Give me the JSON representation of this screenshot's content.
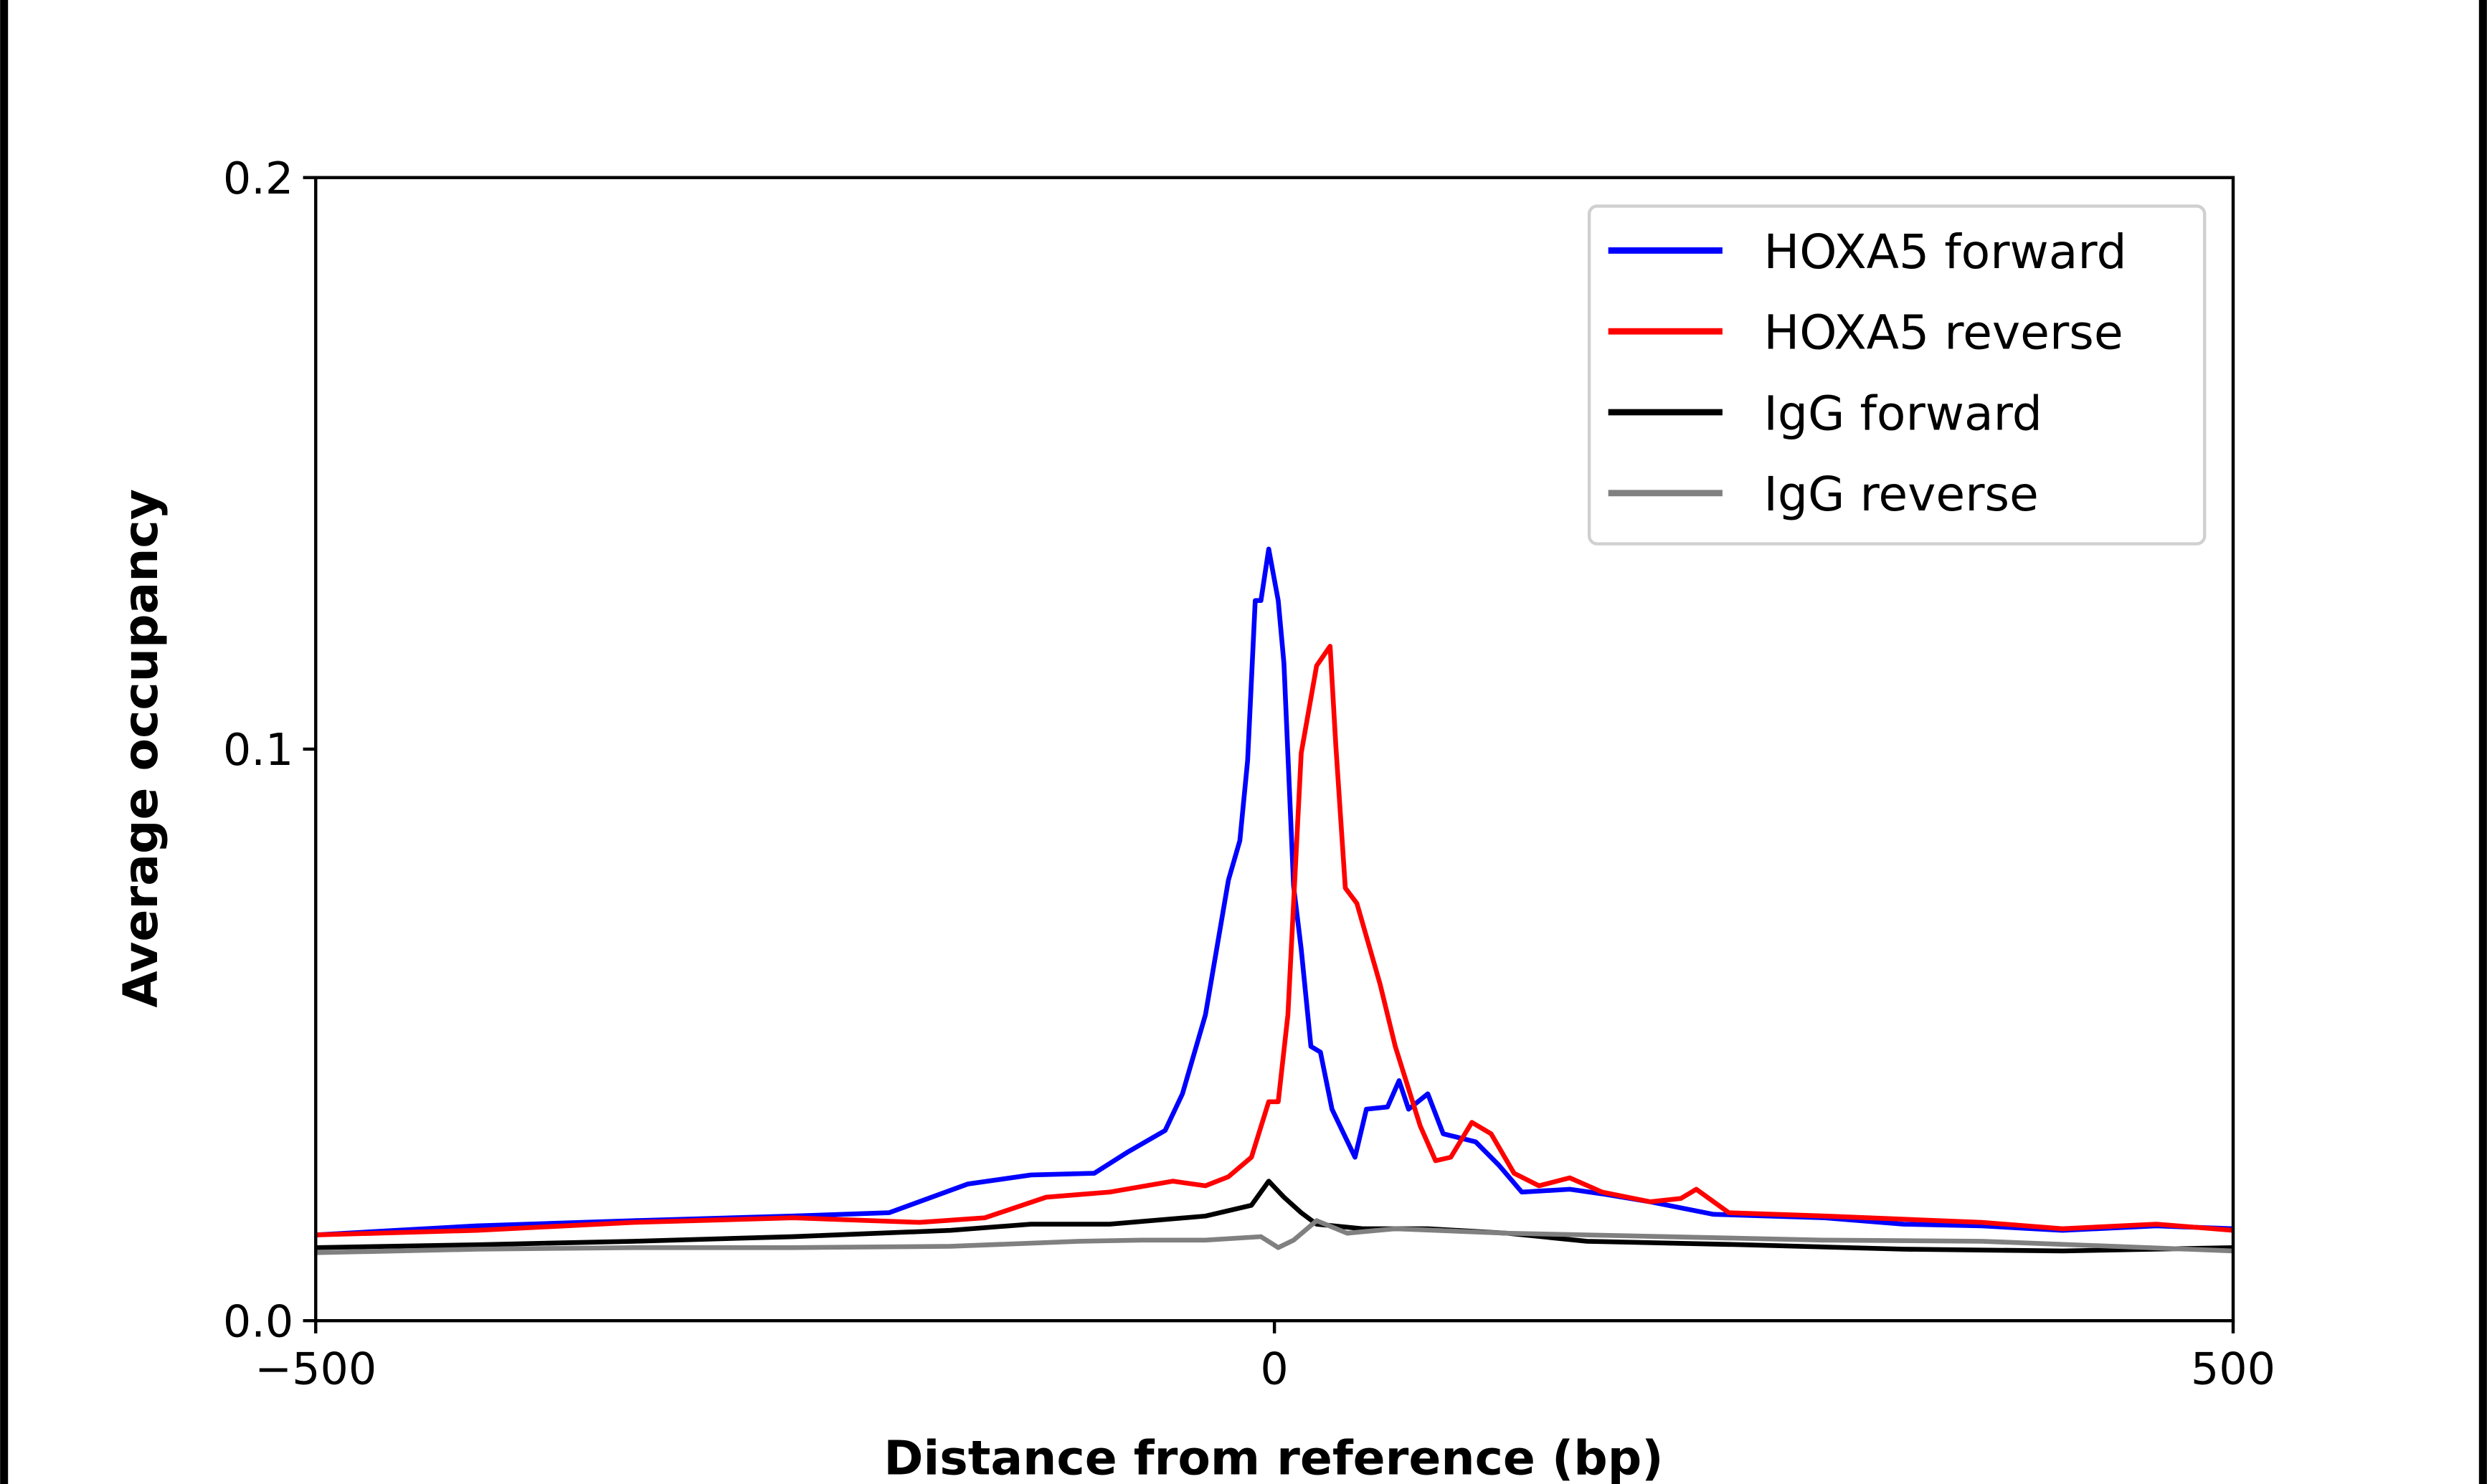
{
  "chart_data": {
    "type": "line",
    "title": "",
    "xlabel": "Distance from reference (bp)",
    "ylabel": "Average occupancy",
    "xlim": [
      -500,
      500
    ],
    "ylim": [
      0,
      0.2
    ],
    "xticks": [
      -500,
      0,
      500
    ],
    "xtick_labels": [
      "−500",
      "0",
      "500"
    ],
    "yticks": [
      0,
      0.1,
      0.2
    ],
    "ytick_labels": [
      "0.0",
      "0.1",
      "0.2"
    ],
    "grid": false,
    "legend_position": "top-right",
    "series": [
      {
        "name": "HOXA5 forward",
        "color": "#0000ff",
        "x": [
          -500,
          -458,
          -416,
          -334,
          -251,
          -201,
          -160,
          -127,
          -94,
          -77,
          -57,
          -48,
          -36,
          -24,
          -18,
          -14,
          -10,
          -7,
          -3,
          2,
          5,
          10,
          14,
          19,
          24,
          30,
          42,
          48,
          59,
          65,
          70,
          80,
          88,
          105,
          117,
          129,
          154,
          171,
          196,
          229,
          287,
          328,
          369,
          411,
          460,
          500
        ],
        "y": [
          0.015,
          0.0158,
          0.0166,
          0.0175,
          0.0183,
          0.0189,
          0.0239,
          0.0255,
          0.0258,
          0.0294,
          0.0333,
          0.0397,
          0.0535,
          0.0771,
          0.084,
          0.098,
          0.126,
          0.126,
          0.135,
          0.126,
          0.115,
          0.076,
          0.065,
          0.048,
          0.047,
          0.037,
          0.0286,
          0.037,
          0.0374,
          0.042,
          0.037,
          0.0397,
          0.0327,
          0.0313,
          0.0272,
          0.0225,
          0.023,
          0.0222,
          0.0208,
          0.0186,
          0.018,
          0.0169,
          0.0166,
          0.0158,
          0.0166,
          0.0161
        ]
      },
      {
        "name": "HOXA5 reverse",
        "color": "#ff0000",
        "x": [
          -500,
          -416,
          -334,
          -251,
          -185,
          -151,
          -119,
          -86,
          -53,
          -36,
          -24,
          -12,
          -3,
          2,
          7,
          14,
          22,
          29,
          32,
          37,
          43,
          55,
          63,
          76,
          84,
          92,
          103,
          113,
          125,
          138,
          154,
          171,
          196,
          212,
          220,
          237,
          287,
          369,
          411,
          460,
          500
        ],
        "y": [
          0.015,
          0.0158,
          0.0172,
          0.018,
          0.0172,
          0.018,
          0.0216,
          0.0225,
          0.0244,
          0.0236,
          0.0252,
          0.0286,
          0.0383,
          0.0383,
          0.0535,
          0.0993,
          0.1146,
          0.118,
          0.1007,
          0.0757,
          0.073,
          0.059,
          0.048,
          0.0341,
          0.028,
          0.0286,
          0.0347,
          0.0327,
          0.0258,
          0.0236,
          0.025,
          0.0225,
          0.0208,
          0.0214,
          0.023,
          0.0189,
          0.0183,
          0.0172,
          0.0161,
          0.0169,
          0.0158
        ]
      },
      {
        "name": "IgG forward",
        "color": "#000000",
        "x": [
          -500,
          -416,
          -334,
          -251,
          -169,
          -127,
          -86,
          -36,
          -12,
          -3,
          5,
          14,
          22,
          46,
          80,
          121,
          163,
          245,
          328,
          411,
          500
        ],
        "y": [
          0.0128,
          0.0133,
          0.0139,
          0.0147,
          0.0158,
          0.0169,
          0.0169,
          0.0183,
          0.0202,
          0.0244,
          0.0216,
          0.0189,
          0.0169,
          0.0161,
          0.0161,
          0.0153,
          0.0139,
          0.0133,
          0.0125,
          0.0122,
          0.0128
        ]
      },
      {
        "name": "IgG reverse",
        "color": "#808080",
        "x": [
          -500,
          -416,
          -334,
          -251,
          -169,
          -102,
          -69,
          -36,
          -7,
          2,
          10,
          22,
          38,
          63,
          121,
          204,
          287,
          369,
          500
        ],
        "y": [
          0.0119,
          0.0125,
          0.0128,
          0.0128,
          0.013,
          0.0139,
          0.0141,
          0.0141,
          0.0147,
          0.0128,
          0.0141,
          0.0175,
          0.0153,
          0.0161,
          0.0153,
          0.0147,
          0.0141,
          0.0139,
          0.0122
        ]
      }
    ]
  }
}
